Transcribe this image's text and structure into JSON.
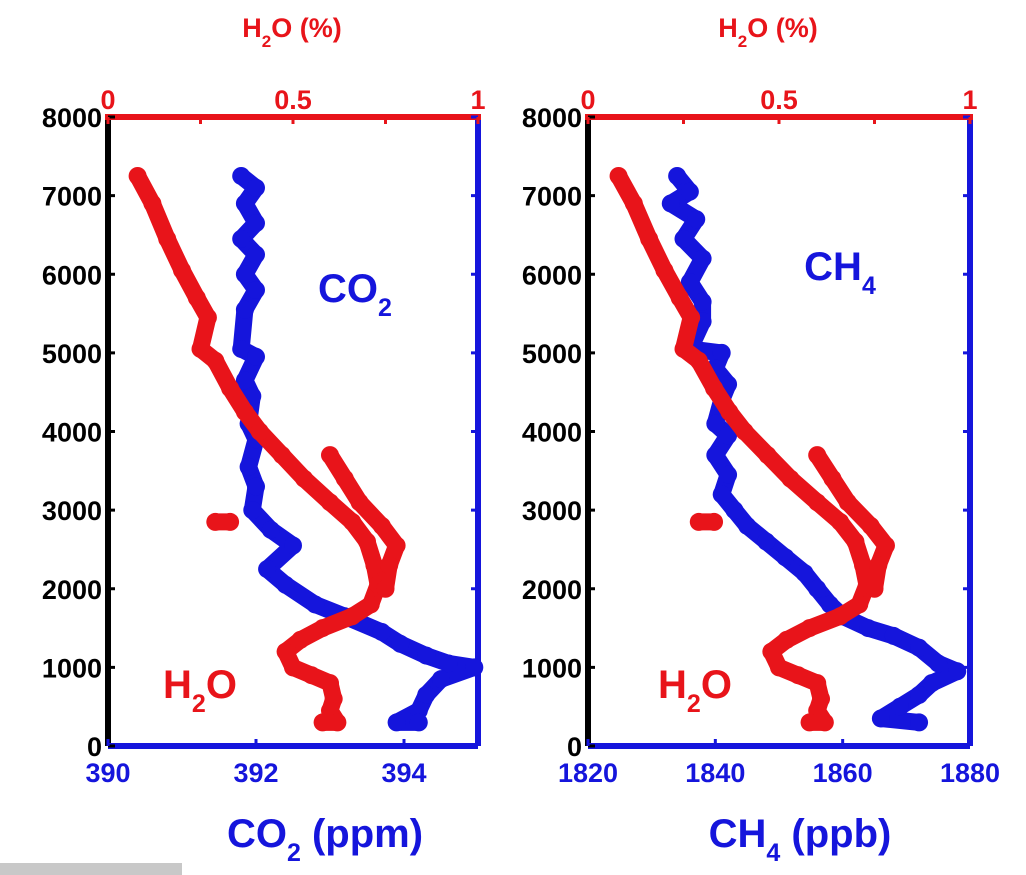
{
  "chart_data": [
    {
      "type": "scatter",
      "top_axis": {
        "label_main": "H",
        "label_sub": "2",
        "label_rest": "O (%)",
        "range": [
          0,
          1
        ],
        "ticks": [
          "0",
          "0.5",
          "1"
        ],
        "color": "#e8141a"
      },
      "bottom_axis": {
        "label_main": "CO",
        "label_sub": "2",
        "label_rest": " (ppm)",
        "range": [
          390,
          395
        ],
        "ticks": [
          "390",
          "392",
          "394"
        ],
        "tick_values": [
          390,
          392,
          394
        ],
        "color": "#1515dc"
      },
      "left_axis": {
        "range": [
          0,
          8000
        ],
        "ticks": [
          "0",
          "1000",
          "2000",
          "3000",
          "4000",
          "5000",
          "6000",
          "7000",
          "8000"
        ]
      },
      "gas_label": {
        "main": "CO",
        "sub": "2"
      },
      "water_label": {
        "main": "H",
        "sub": "2",
        "rest": "O"
      },
      "series": [
        {
          "name": "CO2",
          "axis": "bottom",
          "color": "#1515dc",
          "points": [
            [
              391.8,
              7250
            ],
            [
              392.0,
              7100
            ],
            [
              391.85,
              6900
            ],
            [
              392.0,
              6650
            ],
            [
              391.8,
              6450
            ],
            [
              392.0,
              6250
            ],
            [
              391.85,
              6000
            ],
            [
              392.0,
              5800
            ],
            [
              391.85,
              5550
            ],
            [
              391.8,
              5050
            ],
            [
              392.0,
              4950
            ],
            [
              391.85,
              4650
            ],
            [
              391.95,
              4450
            ],
            [
              391.9,
              4100
            ],
            [
              392.0,
              3900
            ],
            [
              391.9,
              3550
            ],
            [
              392.0,
              3300
            ],
            [
              391.95,
              3000
            ],
            [
              392.2,
              2750
            ],
            [
              392.5,
              2550
            ],
            [
              392.15,
              2250
            ],
            [
              392.4,
              2050
            ],
            [
              392.8,
              1800
            ],
            [
              393.2,
              1650
            ],
            [
              393.7,
              1450
            ],
            [
              393.95,
              1300
            ],
            [
              394.3,
              1150
            ],
            [
              394.6,
              1050
            ],
            [
              394.95,
              1000
            ],
            [
              394.5,
              850
            ],
            [
              394.3,
              650
            ],
            [
              394.2,
              450
            ],
            [
              393.9,
              300
            ],
            [
              394.2,
              300
            ]
          ]
        },
        {
          "name": "H2O",
          "axis": "top",
          "color": "#e8141a",
          "points": [
            [
              0.08,
              7250
            ],
            [
              0.12,
              6900
            ],
            [
              0.16,
              6450
            ],
            [
              0.2,
              6050
            ],
            [
              0.24,
              5700
            ],
            [
              0.27,
              5450
            ],
            [
              0.25,
              5050
            ],
            [
              0.29,
              4900
            ],
            [
              0.33,
              4550
            ],
            [
              0.37,
              4250
            ],
            [
              0.41,
              4000
            ],
            [
              0.47,
              3700
            ],
            [
              0.53,
              3400
            ],
            [
              0.6,
              3100
            ],
            [
              0.66,
              2850
            ],
            [
              0.7,
              2600
            ],
            [
              0.72,
              2300
            ],
            [
              0.73,
              2050
            ],
            [
              0.71,
              1800
            ],
            [
              0.66,
              1650
            ],
            [
              0.58,
              1500
            ],
            [
              0.52,
              1350
            ],
            [
              0.48,
              1200
            ],
            [
              0.5,
              1000
            ],
            [
              0.55,
              900
            ],
            [
              0.6,
              800
            ],
            [
              0.61,
              600
            ],
            [
              0.6,
              450
            ],
            [
              0.62,
              300
            ],
            [
              0.58,
              300
            ]
          ]
        },
        {
          "name": "H2O",
          "axis": "top",
          "color": "#e8141a",
          "points": [
            [
              0.6,
              3700
            ],
            [
              0.64,
              3400
            ],
            [
              0.68,
              3100
            ],
            [
              0.74,
              2800
            ],
            [
              0.78,
              2550
            ],
            [
              0.76,
              2300
            ],
            [
              0.75,
              2000
            ]
          ]
        },
        {
          "name": "H2O",
          "axis": "top",
          "color": "#e8141a",
          "points": [
            [
              0.29,
              2850
            ],
            [
              0.33,
              2850
            ]
          ]
        }
      ]
    },
    {
      "type": "scatter",
      "top_axis": {
        "label_main": "H",
        "label_sub": "2",
        "label_rest": "O (%)",
        "range": [
          0,
          1
        ],
        "ticks": [
          "0",
          "0.5",
          "1"
        ],
        "color": "#e8141a"
      },
      "bottom_axis": {
        "label_main": "CH",
        "label_sub": "4",
        "label_rest": " (ppb)",
        "range": [
          1820,
          1880
        ],
        "ticks": [
          "1820",
          "1840",
          "1860",
          "1880"
        ],
        "tick_values": [
          1820,
          1840,
          1860,
          1880
        ],
        "color": "#1515dc"
      },
      "left_axis": {
        "range": [
          0,
          8000
        ],
        "ticks": [
          "0",
          "1000",
          "2000",
          "3000",
          "4000",
          "5000",
          "6000",
          "7000",
          "8000"
        ]
      },
      "gas_label": {
        "main": "CH",
        "sub": "4"
      },
      "water_label": {
        "main": "H",
        "sub": "2",
        "rest": "O"
      },
      "series": [
        {
          "name": "CH4",
          "axis": "bottom",
          "color": "#1515dc",
          "points": [
            [
              1834,
              7250
            ],
            [
              1836,
              7050
            ],
            [
              1833,
              6900
            ],
            [
              1837,
              6700
            ],
            [
              1835,
              6450
            ],
            [
              1838,
              6200
            ],
            [
              1836,
              5900
            ],
            [
              1838,
              5650
            ],
            [
              1838,
              5400
            ],
            [
              1836,
              5050
            ],
            [
              1841,
              5000
            ],
            [
              1840,
              4800
            ],
            [
              1842,
              4600
            ],
            [
              1841,
              4400
            ],
            [
              1840,
              4100
            ],
            [
              1842,
              3950
            ],
            [
              1840,
              3700
            ],
            [
              1842,
              3450
            ],
            [
              1841,
              3200
            ],
            [
              1843,
              3000
            ],
            [
              1845,
              2800
            ],
            [
              1848,
              2600
            ],
            [
              1851,
              2400
            ],
            [
              1854,
              2200
            ],
            [
              1856,
              2000
            ],
            [
              1858,
              1800
            ],
            [
              1860,
              1650
            ],
            [
              1864,
              1500
            ],
            [
              1868,
              1400
            ],
            [
              1872,
              1250
            ],
            [
              1875,
              1050
            ],
            [
              1878,
              950
            ],
            [
              1874,
              800
            ],
            [
              1872,
              650
            ],
            [
              1869,
              500
            ],
            [
              1866,
              350
            ],
            [
              1872,
              300
            ]
          ]
        },
        {
          "name": "H2O",
          "axis": "top",
          "color": "#e8141a",
          "points": [
            [
              0.08,
              7250
            ],
            [
              0.12,
              6900
            ],
            [
              0.16,
              6450
            ],
            [
              0.2,
              6050
            ],
            [
              0.24,
              5700
            ],
            [
              0.27,
              5450
            ],
            [
              0.25,
              5050
            ],
            [
              0.29,
              4900
            ],
            [
              0.33,
              4550
            ],
            [
              0.37,
              4250
            ],
            [
              0.41,
              4000
            ],
            [
              0.47,
              3700
            ],
            [
              0.53,
              3400
            ],
            [
              0.6,
              3100
            ],
            [
              0.66,
              2850
            ],
            [
              0.7,
              2600
            ],
            [
              0.72,
              2300
            ],
            [
              0.73,
              2050
            ],
            [
              0.71,
              1800
            ],
            [
              0.66,
              1650
            ],
            [
              0.58,
              1500
            ],
            [
              0.52,
              1350
            ],
            [
              0.48,
              1200
            ],
            [
              0.5,
              1000
            ],
            [
              0.55,
              900
            ],
            [
              0.6,
              800
            ],
            [
              0.61,
              600
            ],
            [
              0.6,
              450
            ],
            [
              0.62,
              300
            ],
            [
              0.58,
              300
            ]
          ]
        },
        {
          "name": "H2O",
          "axis": "top",
          "color": "#e8141a",
          "points": [
            [
              0.6,
              3700
            ],
            [
              0.64,
              3400
            ],
            [
              0.68,
              3100
            ],
            [
              0.74,
              2800
            ],
            [
              0.78,
              2550
            ],
            [
              0.76,
              2300
            ],
            [
              0.75,
              2000
            ]
          ]
        },
        {
          "name": "H2O",
          "axis": "top",
          "color": "#e8141a",
          "points": [
            [
              0.29,
              2850
            ],
            [
              0.33,
              2850
            ]
          ]
        }
      ]
    }
  ]
}
